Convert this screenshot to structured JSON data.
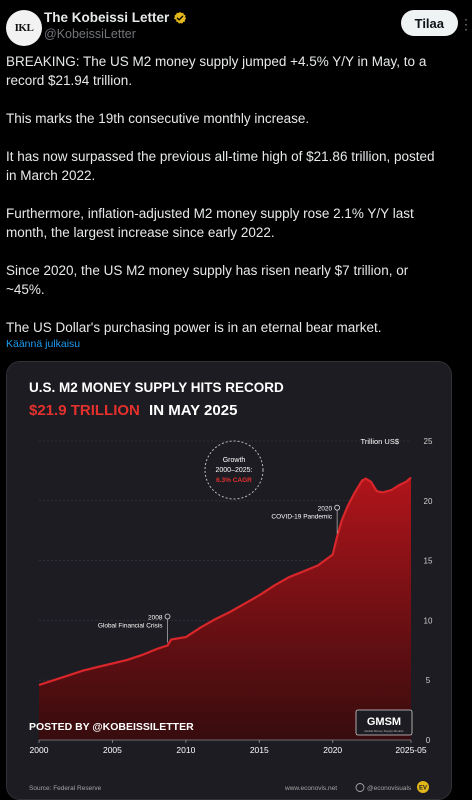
{
  "account": {
    "avatar_text": "IKL",
    "name": "The Kobeissi Letter",
    "handle": "@KobeissiLetter",
    "verified_color": "#e2b719"
  },
  "subscribe_label": "Tilaa",
  "tweet": {
    "paragraphs": [
      "BREAKING: The US M2 money supply jumped +4.5% Y/Y in May, to a record $21.94 trillion.",
      "This marks the 19th consecutive monthly increase.",
      "It has now surpassed the previous all-time high of $21.86 trillion, posted in March 2022.",
      "Furthermore, inflation-adjusted M2 money supply rose 2.1% Y/Y last month, the largest increase since early 2022.",
      "Since 2020, the US M2 money supply has risen nearly $7 trillion, or ~45%.",
      "The US Dollar's purchasing power is in an eternal bear market."
    ],
    "translate_label": "Käännä julkaisu"
  },
  "chart_data": {
    "type": "area",
    "title_line1": "U.S. M2 MONEY SUPPLY HITS RECORD",
    "title_line2_highlight": "$21.9 TRILLION",
    "title_line2_rest": "IN MAY 2025",
    "y_unit_label": "Trillion US$",
    "y_ticks": [
      0,
      5,
      10,
      15,
      20,
      25
    ],
    "x_tick_labels": [
      "2000",
      "2005",
      "2010",
      "2015",
      "2020",
      "2025-05"
    ],
    "x_tick_values": [
      2000,
      2005,
      2010,
      2015,
      2020,
      2025.33
    ],
    "xlim": [
      2000,
      2025.33
    ],
    "ylim": [
      0,
      25
    ],
    "series": [
      {
        "x": [
          2000,
          2001,
          2002,
          2003,
          2004,
          2005,
          2006,
          2007,
          2008,
          2008.75,
          2009,
          2010,
          2011,
          2012,
          2013,
          2014,
          2015,
          2016,
          2017,
          2018,
          2019,
          2020,
          2020.3,
          2020.6,
          2021,
          2021.5,
          2022,
          2022.25,
          2022.6,
          2023,
          2023.4,
          2024,
          2024.5,
          2025,
          2025.33
        ],
        "values": [
          4.6,
          5.0,
          5.4,
          5.8,
          6.1,
          6.4,
          6.7,
          7.1,
          7.6,
          7.9,
          8.4,
          8.6,
          9.4,
          10.1,
          10.7,
          11.4,
          12.1,
          12.9,
          13.6,
          14.1,
          14.6,
          15.5,
          17.0,
          18.3,
          19.5,
          20.7,
          21.7,
          21.86,
          21.6,
          20.8,
          20.7,
          20.9,
          21.3,
          21.6,
          21.94
        ]
      }
    ],
    "annotations": [
      {
        "label_year": "2008",
        "label_text": "Global Financial Crisis",
        "x": 2008.75,
        "y": 7.9
      },
      {
        "label_year": "2020",
        "label_text": "COVID-19 Pandemic",
        "x": 2020.3,
        "y": 17.0
      }
    ],
    "growth_badge": {
      "line1": "Growth",
      "line2": "2000–2025:",
      "line3": "6.3% CAGR"
    },
    "posted_by": "POSTED BY @KOBEISSILETTER",
    "gmsm_logo": "GMSM",
    "gmsm_subtitle": "Global Money Supply Monitor",
    "source": "Source: Federal Reserve",
    "website": "www.econovis.net",
    "social": "@econovisuals",
    "ev_badge": "EV",
    "colors": {
      "accent": "#e5312e",
      "line": "#d9262b",
      "bg": "#1c1c22"
    }
  }
}
